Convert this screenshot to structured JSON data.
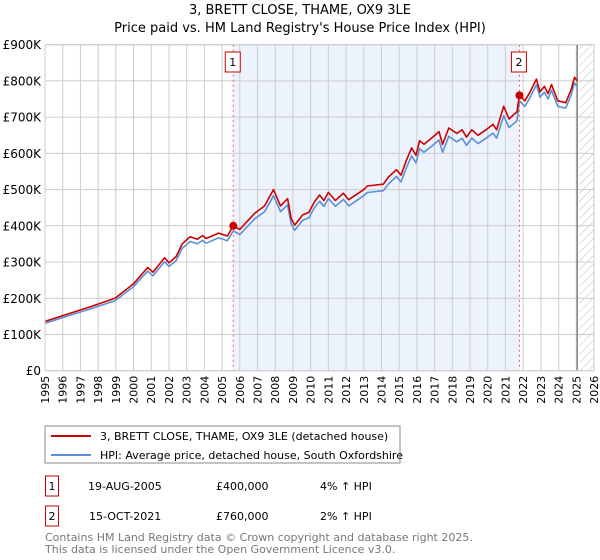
{
  "colors": {
    "property": "#cc0000",
    "hpi": "#5b8fd6",
    "shade": "#edf3fc",
    "grid": "#cccccc"
  },
  "chart_data": {
    "type": "line",
    "title": "3, BRETT CLOSE, THAME, OX9 3LE",
    "subtitle": "Price paid vs. HM Land Registry's House Price Index (HPI)",
    "xlim": [
      1995,
      2026
    ],
    "ylim": [
      0,
      900000
    ],
    "grid": true,
    "x_ticks": [
      "1995",
      "1996",
      "1997",
      "1998",
      "1999",
      "2000",
      "2001",
      "2002",
      "2003",
      "2004",
      "2005",
      "2006",
      "2007",
      "2008",
      "2009",
      "2010",
      "2011",
      "2012",
      "2013",
      "2014",
      "2015",
      "2016",
      "2017",
      "2018",
      "2019",
      "2020",
      "2021",
      "2022",
      "2023",
      "2024",
      "2025",
      "2026"
    ],
    "y_ticks": [
      {
        "v": 0,
        "label": "£0"
      },
      {
        "v": 100000,
        "label": "£100K"
      },
      {
        "v": 200000,
        "label": "£200K"
      },
      {
        "v": 300000,
        "label": "£300K"
      },
      {
        "v": 400000,
        "label": "£400K"
      },
      {
        "v": 500000,
        "label": "£500K"
      },
      {
        "v": 600000,
        "label": "£600K"
      },
      {
        "v": 700000,
        "label": "£700K"
      },
      {
        "v": 800000,
        "label": "£800K"
      },
      {
        "v": 900000,
        "label": "£900K"
      }
    ],
    "x": [
      1995.0,
      1997.65,
      1998.95,
      2000.0,
      2000.8,
      2001.1,
      2001.75,
      2002.0,
      2002.4,
      2002.75,
      2003.2,
      2003.6,
      2003.9,
      2004.1,
      2004.8,
      2005.3,
      2005.63,
      2006.0,
      2006.85,
      2007.4,
      2007.9,
      2008.3,
      2008.7,
      2008.9,
      2009.1,
      2009.55,
      2009.9,
      2010.2,
      2010.5,
      2010.75,
      2011.0,
      2011.4,
      2011.85,
      2012.15,
      2013.0,
      2013.2,
      2014.1,
      2014.4,
      2014.85,
      2015.1,
      2015.4,
      2015.7,
      2015.95,
      2016.15,
      2016.4,
      2016.9,
      2017.25,
      2017.45,
      2017.8,
      2018.25,
      2018.55,
      2018.8,
      2019.1,
      2019.45,
      2019.9,
      2020.3,
      2020.5,
      2020.9,
      2021.2,
      2021.65,
      2021.79,
      2022.1,
      2022.4,
      2022.75,
      2022.95,
      2023.2,
      2023.4,
      2023.6,
      2023.95,
      2024.4,
      2024.7,
      2024.9,
      2025.05
    ],
    "series": [
      {
        "name": "3, BRETT CLOSE, THAME, OX9 3LE (detached house)",
        "values": [
          136,
          178,
          200,
          240,
          285,
          272,
          312,
          298,
          315,
          350,
          370,
          363,
          373,
          365,
          380,
          372,
          400,
          390,
          435,
          455,
          500,
          455,
          475,
          420,
          402,
          430,
          437,
          465,
          485,
          470,
          492,
          470,
          490,
          472,
          500,
          510,
          515,
          535,
          555,
          540,
          580,
          615,
          595,
          635,
          625,
          645,
          660,
          625,
          670,
          655,
          665,
          645,
          665,
          650,
          665,
          680,
          665,
          730,
          695,
          715,
          760,
          745,
          770,
          805,
          770,
          785,
          765,
          790,
          745,
          740,
          775,
          810,
          800
        ]
      },
      {
        "name": "HPI: Average price, detached house, South Oxfordshire",
        "values": [
          131,
          172,
          193,
          232,
          275,
          262,
          301,
          288,
          304,
          338,
          357,
          350,
          360,
          352,
          367,
          359,
          386,
          376,
          420,
          439,
          483,
          439,
          458,
          405,
          388,
          415,
          422,
          449,
          468,
          454,
          475,
          454,
          473,
          455,
          483,
          492,
          497,
          516,
          536,
          521,
          560,
          593,
          574,
          613,
          603,
          622,
          637,
          603,
          647,
          632,
          642,
          622,
          642,
          627,
          642,
          656,
          642,
          704,
          671,
          690,
          745,
          730,
          755,
          789,
          755,
          769,
          750,
          774,
          730,
          725,
          760,
          794,
          784
        ]
      }
    ],
    "value_unit": "thousand GBP",
    "sales": [
      {
        "n": "1",
        "x": 2005.63,
        "value": 400000
      },
      {
        "n": "2",
        "x": 2021.79,
        "value": 760000
      }
    ],
    "forecast_from": 2025.17
  },
  "legend": [
    {
      "label": "3, BRETT CLOSE, THAME, OX9 3LE (detached house)"
    },
    {
      "label": "HPI: Average price, detached house, South Oxfordshire"
    }
  ],
  "transactions": [
    {
      "n": "1",
      "date": "19-AUG-2005",
      "price": "£400,000",
      "hpi": "4% ↑ HPI"
    },
    {
      "n": "2",
      "date": "15-OCT-2021",
      "price": "£760,000",
      "hpi": "2% ↑ HPI"
    }
  ],
  "footer": {
    "line1": "Contains HM Land Registry data © Crown copyright and database right 2025.",
    "line2": "This data is licensed under the Open Government Licence v3.0."
  }
}
